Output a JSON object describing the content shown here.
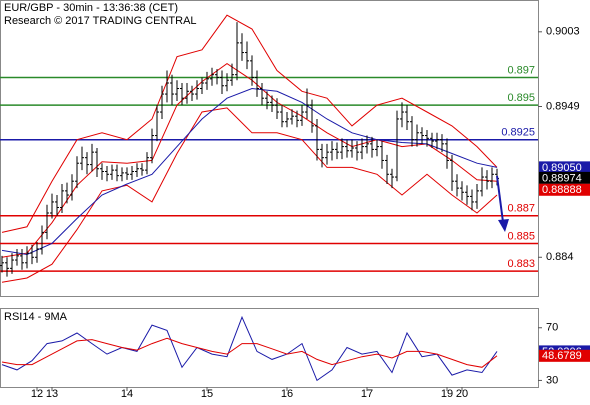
{
  "chart_data": [
    {
      "type": "ohlc",
      "title": "EUR/GBP - 30min - 13:36:38 (CET)",
      "subtitle": "Research © 2017 TRADING CENTRAL",
      "color": "#000000",
      "open": [
        0.8834,
        0.8836,
        0.8832,
        0.8838,
        0.8841,
        0.8836,
        0.8843,
        0.884,
        0.8846,
        0.8858,
        0.8872,
        0.888,
        0.8876,
        0.8888,
        0.8885,
        0.8895,
        0.8908,
        0.8912,
        0.8907,
        0.8916,
        0.8904,
        0.8902,
        0.89,
        0.8903,
        0.8899,
        0.8901,
        0.89,
        0.8902,
        0.8904,
        0.8903,
        0.8912,
        0.8928,
        0.8945,
        0.8958,
        0.8966,
        0.8958,
        0.8962,
        0.8955,
        0.896,
        0.8958,
        0.8962,
        0.8966,
        0.8969,
        0.8972,
        0.897,
        0.8964,
        0.8968,
        0.8972,
        0.8995,
        0.8988,
        0.8982,
        0.897,
        0.8962,
        0.8955,
        0.8952,
        0.895,
        0.8945,
        0.8938,
        0.894,
        0.8942,
        0.8939,
        0.8945,
        0.895,
        0.8935,
        0.8918,
        0.8912,
        0.8916,
        0.8918,
        0.8916,
        0.892,
        0.8917,
        0.8919,
        0.8916,
        0.892,
        0.8922,
        0.8918,
        0.892,
        0.891,
        0.89,
        0.8898,
        0.894,
        0.8945,
        0.8938,
        0.8925,
        0.893,
        0.8928,
        0.8926,
        0.8924,
        0.8925,
        0.8922,
        0.891,
        0.8895,
        0.889,
        0.8887,
        0.8884,
        0.888,
        0.8888,
        0.8898,
        0.8895,
        0.89
      ],
      "high": [
        0.8841,
        0.884,
        0.8843,
        0.8846,
        0.8846,
        0.8848,
        0.8849,
        0.8851,
        0.8863,
        0.8878,
        0.8886,
        0.8885,
        0.8893,
        0.8894,
        0.89,
        0.8913,
        0.892,
        0.8916,
        0.8922,
        0.8919,
        0.8908,
        0.8906,
        0.8907,
        0.8907,
        0.8905,
        0.8905,
        0.8906,
        0.8908,
        0.8908,
        0.8916,
        0.8933,
        0.895,
        0.8964,
        0.8975,
        0.8972,
        0.8968,
        0.8966,
        0.8966,
        0.8964,
        0.8968,
        0.897,
        0.8974,
        0.8977,
        0.8976,
        0.8975,
        0.8973,
        0.898,
        0.901,
        0.9002,
        0.8996,
        0.8986,
        0.8975,
        0.8966,
        0.896,
        0.8957,
        0.8955,
        0.895,
        0.8945,
        0.8947,
        0.8946,
        0.895,
        0.8962,
        0.8954,
        0.894,
        0.8922,
        0.8922,
        0.8924,
        0.8923,
        0.8926,
        0.8925,
        0.8925,
        0.8924,
        0.8926,
        0.8928,
        0.8927,
        0.8925,
        0.8924,
        0.8914,
        0.8904,
        0.8946,
        0.8952,
        0.895,
        0.8942,
        0.8936,
        0.8934,
        0.8932,
        0.893,
        0.893,
        0.8929,
        0.8926,
        0.8914,
        0.89,
        0.8895,
        0.8892,
        0.8889,
        0.8893,
        0.8905,
        0.8903,
        0.8905,
        0.8904
      ],
      "low": [
        0.8829,
        0.8826,
        0.8828,
        0.8834,
        0.8831,
        0.8832,
        0.8835,
        0.8836,
        0.8842,
        0.8853,
        0.8868,
        0.887,
        0.8872,
        0.8879,
        0.8881,
        0.889,
        0.8903,
        0.89,
        0.8902,
        0.8898,
        0.8896,
        0.8895,
        0.8896,
        0.8895,
        0.8895,
        0.8896,
        0.8896,
        0.8898,
        0.8899,
        0.89,
        0.8908,
        0.8924,
        0.894,
        0.8952,
        0.895,
        0.8953,
        0.895,
        0.8951,
        0.8953,
        0.8954,
        0.8958,
        0.8961,
        0.8964,
        0.8965,
        0.8958,
        0.896,
        0.8964,
        0.8968,
        0.8982,
        0.8976,
        0.8964,
        0.8956,
        0.895,
        0.8947,
        0.8945,
        0.894,
        0.8934,
        0.8934,
        0.8936,
        0.8934,
        0.8935,
        0.894,
        0.893,
        0.891,
        0.8905,
        0.8907,
        0.891,
        0.8911,
        0.8911,
        0.8912,
        0.8912,
        0.891,
        0.8911,
        0.8915,
        0.8912,
        0.8913,
        0.8904,
        0.8893,
        0.889,
        0.8895,
        0.8934,
        0.8932,
        0.892,
        0.892,
        0.8922,
        0.892,
        0.8919,
        0.8918,
        0.8916,
        0.8904,
        0.8888,
        0.8884,
        0.8881,
        0.8878,
        0.8874,
        0.8875,
        0.8884,
        0.8889,
        0.889,
        0.8892
      ],
      "close": [
        0.8836,
        0.8832,
        0.8838,
        0.8841,
        0.8836,
        0.8843,
        0.884,
        0.8846,
        0.8858,
        0.8872,
        0.888,
        0.8876,
        0.8888,
        0.8885,
        0.8895,
        0.8908,
        0.8912,
        0.8907,
        0.8916,
        0.8904,
        0.8902,
        0.89,
        0.8903,
        0.8899,
        0.8901,
        0.89,
        0.8902,
        0.8904,
        0.8903,
        0.8912,
        0.8928,
        0.8945,
        0.8958,
        0.8966,
        0.8958,
        0.8962,
        0.8955,
        0.896,
        0.8958,
        0.8962,
        0.8966,
        0.8969,
        0.8972,
        0.897,
        0.8964,
        0.8968,
        0.8972,
        0.8995,
        0.8988,
        0.8982,
        0.897,
        0.8962,
        0.8955,
        0.8952,
        0.895,
        0.8945,
        0.8938,
        0.894,
        0.8942,
        0.8939,
        0.8945,
        0.895,
        0.8935,
        0.8918,
        0.8912,
        0.8916,
        0.8918,
        0.8916,
        0.892,
        0.8917,
        0.8919,
        0.8916,
        0.892,
        0.8922,
        0.8918,
        0.892,
        0.891,
        0.89,
        0.8898,
        0.894,
        0.8945,
        0.8938,
        0.8925,
        0.893,
        0.8928,
        0.8926,
        0.8924,
        0.8925,
        0.8922,
        0.891,
        0.8895,
        0.889,
        0.8887,
        0.8884,
        0.888,
        0.8888,
        0.8898,
        0.8895,
        0.89,
        0.8897
      ],
      "bands": {
        "x": [
          0,
          5,
          10,
          15,
          20,
          25,
          30,
          35,
          40,
          45,
          50,
          55,
          60,
          65,
          70,
          75,
          80,
          85,
          90,
          95,
          99
        ],
        "series": [
          {
            "color": "#e00000",
            "values": [
              0.8858,
              0.8862,
              0.8895,
              0.8925,
              0.893,
              0.8925,
              0.894,
              0.8985,
              0.899,
              0.9015,
              0.9005,
              0.8975,
              0.896,
              0.8955,
              0.8935,
              0.895,
              0.8955,
              0.8945,
              0.8935,
              0.892,
              0.8905
            ]
          },
          {
            "color": "#e00000",
            "values": [
              0.8822,
              0.8825,
              0.8835,
              0.886,
              0.8888,
              0.8892,
              0.888,
              0.8915,
              0.8945,
              0.8948,
              0.893,
              0.893,
              0.8925,
              0.8905,
              0.8905,
              0.89,
              0.8885,
              0.89,
              0.8885,
              0.8872,
              0.8885
            ]
          },
          {
            "color": "#e00000",
            "values": [
              0.884,
              0.8843,
              0.8865,
              0.8892,
              0.8909,
              0.8908,
              0.891,
              0.895,
              0.8967,
              0.898,
              0.8968,
              0.8952,
              0.8942,
              0.893,
              0.892,
              0.8925,
              0.892,
              0.8922,
              0.891,
              0.8896,
              0.8895
            ]
          },
          {
            "color": "#1a1aa8",
            "values": [
              0.8845,
              0.8842,
              0.885,
              0.8868,
              0.8885,
              0.8893,
              0.89,
              0.892,
              0.894,
              0.8955,
              0.8962,
              0.896,
              0.8952,
              0.894,
              0.893,
              0.8925,
              0.8923,
              0.8922,
              0.8915,
              0.8908,
              0.8905
            ]
          }
        ]
      },
      "levels": [
        {
          "value": 0.897,
          "color": "#2a8a2a"
        },
        {
          "value": 0.895,
          "color": "#2a8a2a"
        },
        {
          "value": 0.8925,
          "color": "#1a1aa8"
        },
        {
          "value": 0.887,
          "color": "#e00000"
        },
        {
          "value": 0.885,
          "color": "#e00000"
        },
        {
          "value": 0.883,
          "color": "#e00000"
        }
      ],
      "markers": [
        {
          "value": 0.8905,
          "label": "0.89050",
          "color": "#1a1aa8"
        },
        {
          "value": 0.88974,
          "label": "0.88974",
          "color": "#000000"
        },
        {
          "value": 0.88888,
          "label": "0.88888",
          "color": "#e00000"
        }
      ],
      "xlim": [
        -0.4,
        107.2
      ],
      "ylim": [
        0.8812,
        0.9026
      ],
      "yticks": [
        0.9003,
        0.8949,
        0.884
      ]
    },
    {
      "type": "line",
      "title": "RSI14 - 9MA",
      "x": [
        0,
        3,
        6,
        9,
        12,
        15,
        18,
        21,
        24,
        27,
        30,
        33,
        36,
        39,
        42,
        45,
        48,
        51,
        54,
        57,
        60,
        63,
        66,
        69,
        72,
        75,
        78,
        81,
        84,
        87,
        90,
        93,
        96,
        99
      ],
      "series": [
        {
          "color": "#1a1aa8",
          "values": [
            42,
            38,
            45,
            58,
            60,
            66,
            58,
            50,
            55,
            52,
            72,
            68,
            40,
            55,
            50,
            48,
            78,
            52,
            46,
            50,
            58,
            30,
            38,
            55,
            50,
            52,
            36,
            66,
            48,
            50,
            34,
            38,
            36,
            52.0306
          ]
        },
        {
          "color": "#e00000",
          "values": [
            44,
            42,
            42,
            48,
            54,
            60,
            61,
            58,
            55,
            53,
            58,
            62,
            58,
            55,
            52,
            50,
            58,
            58,
            54,
            50,
            52,
            46,
            42,
            45,
            48,
            50,
            47,
            52,
            52,
            50,
            46,
            42,
            40,
            48.6789
          ]
        }
      ],
      "markers": [
        {
          "value": 52.0306,
          "color": "#1a1aa8"
        },
        {
          "value": 48.6789,
          "color": "#e00000"
        }
      ],
      "xlim": [
        -0.4,
        107.2
      ],
      "ylim": [
        25,
        85
      ],
      "yticks": [
        70,
        30
      ],
      "xticks": [
        {
          "value": 7,
          "label": "12"
        },
        {
          "value": 10,
          "label": "13"
        },
        {
          "value": 25,
          "label": "14"
        },
        {
          "value": 41,
          "label": "15"
        },
        {
          "value": 57,
          "label": "16"
        },
        {
          "value": 73,
          "label": "17"
        },
        {
          "value": 89,
          "label": "19"
        },
        {
          "value": 92,
          "label": "20"
        }
      ]
    }
  ]
}
